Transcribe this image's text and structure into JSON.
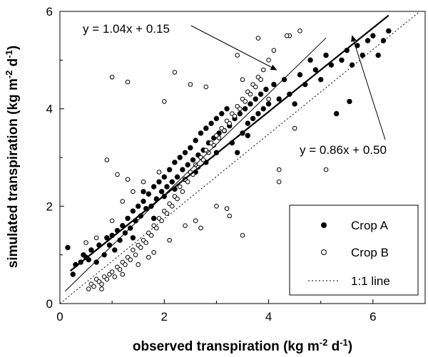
{
  "chart_data": {
    "type": "scatter",
    "xlabel": {
      "main": "observed transpiration (kg m",
      "exp1": "-2",
      "mid": " d",
      "exp2": "-1",
      "end": ")"
    },
    "ylabel": {
      "main": "simulated transpiration (kg m",
      "exp1": "-2",
      "mid": " d",
      "exp2": "-1",
      "end": ")"
    },
    "xlim": [
      0,
      7
    ],
    "ylim": [
      0,
      6
    ],
    "xticks": [
      "0",
      "2",
      "4",
      "6"
    ],
    "xtick_values": [
      0,
      2,
      4,
      6
    ],
    "yticks": [
      "0",
      "2",
      "4",
      "6"
    ],
    "ytick_values": [
      0,
      2,
      4,
      6
    ],
    "legend_placement": "bottom-right",
    "series": [
      {
        "name": "Crop A",
        "marker": "filled-circle",
        "points": [
          [
            0.15,
            1.15
          ],
          [
            0.25,
            0.6
          ],
          [
            0.3,
            0.8
          ],
          [
            0.4,
            0.85
          ],
          [
            0.45,
            1.0
          ],
          [
            0.5,
            0.95
          ],
          [
            0.55,
            0.9
          ],
          [
            0.6,
            1.1
          ],
          [
            0.7,
            0.85
          ],
          [
            0.75,
            1.2
          ],
          [
            0.85,
            1.0
          ],
          [
            0.9,
            1.35
          ],
          [
            0.95,
            1.2
          ],
          [
            1.0,
            1.4
          ],
          [
            1.05,
            1.1
          ],
          [
            1.1,
            1.5
          ],
          [
            1.15,
            1.3
          ],
          [
            1.2,
            1.6
          ],
          [
            1.25,
            1.45
          ],
          [
            1.3,
            1.75
          ],
          [
            1.35,
            1.55
          ],
          [
            1.4,
            1.9
          ],
          [
            1.45,
            1.7
          ],
          [
            1.5,
            2.0
          ],
          [
            1.55,
            1.8
          ],
          [
            1.6,
            2.1
          ],
          [
            1.65,
            1.95
          ],
          [
            1.7,
            2.25
          ],
          [
            1.75,
            2.0
          ],
          [
            1.8,
            2.4
          ],
          [
            1.85,
            2.15
          ],
          [
            1.9,
            2.5
          ],
          [
            1.95,
            2.3
          ],
          [
            2.0,
            2.6
          ],
          [
            2.05,
            2.4
          ],
          [
            2.1,
            2.75
          ],
          [
            2.15,
            2.5
          ],
          [
            2.2,
            2.9
          ],
          [
            2.25,
            2.6
          ],
          [
            2.3,
            3.0
          ],
          [
            2.35,
            2.75
          ],
          [
            2.4,
            3.1
          ],
          [
            2.45,
            2.85
          ],
          [
            2.5,
            3.2
          ],
          [
            2.55,
            2.95
          ],
          [
            2.6,
            3.35
          ],
          [
            2.65,
            3.05
          ],
          [
            2.7,
            3.5
          ],
          [
            2.75,
            3.15
          ],
          [
            2.8,
            3.6
          ],
          [
            2.85,
            3.3
          ],
          [
            2.9,
            3.7
          ],
          [
            2.95,
            3.4
          ],
          [
            3.0,
            3.8
          ],
          [
            3.05,
            3.5
          ],
          [
            3.1,
            3.9
          ],
          [
            3.15,
            3.55
          ],
          [
            3.2,
            4.0
          ],
          [
            3.25,
            3.65
          ],
          [
            3.3,
            3.3
          ],
          [
            3.35,
            3.8
          ],
          [
            3.4,
            3.1
          ],
          [
            3.45,
            3.9
          ],
          [
            3.5,
            3.5
          ],
          [
            3.55,
            4.0
          ],
          [
            3.6,
            3.7
          ],
          [
            3.65,
            4.1
          ],
          [
            3.7,
            3.8
          ],
          [
            3.75,
            4.2
          ],
          [
            3.8,
            3.9
          ],
          [
            3.85,
            4.3
          ],
          [
            3.9,
            4.0
          ],
          [
            3.95,
            4.4
          ],
          [
            4.0,
            4.1
          ],
          [
            4.1,
            4.5
          ],
          [
            4.2,
            4.2
          ],
          [
            4.3,
            4.6
          ],
          [
            4.4,
            4.3
          ],
          [
            4.5,
            4.1
          ],
          [
            4.6,
            4.7
          ],
          [
            4.7,
            4.5
          ],
          [
            4.8,
            5.0
          ],
          [
            4.9,
            4.8
          ],
          [
            5.0,
            4.6
          ],
          [
            5.1,
            5.1
          ],
          [
            5.2,
            4.9
          ],
          [
            5.3,
            3.9
          ],
          [
            5.4,
            5.0
          ],
          [
            5.5,
            5.2
          ],
          [
            5.55,
            4.15
          ],
          [
            5.6,
            4.9
          ],
          [
            5.7,
            5.3
          ],
          [
            5.8,
            5.1
          ],
          [
            5.9,
            5.4
          ],
          [
            6.0,
            5.5
          ],
          [
            6.1,
            5.1
          ],
          [
            6.2,
            5.4
          ],
          [
            6.3,
            5.6
          ],
          [
            1.6,
            2.3
          ],
          [
            2.0,
            2.2
          ],
          [
            2.6,
            2.7
          ],
          [
            2.8,
            2.9
          ],
          [
            3.0,
            3.1
          ],
          [
            2.2,
            2.35
          ],
          [
            1.4,
            1.35
          ],
          [
            1.8,
            1.75
          ],
          [
            2.4,
            2.55
          ],
          [
            3.6,
            3.45
          ]
        ]
      },
      {
        "name": "Crop B",
        "marker": "open-circle",
        "points": [
          [
            0.55,
            0.3
          ],
          [
            0.6,
            0.4
          ],
          [
            0.65,
            0.35
          ],
          [
            0.7,
            0.5
          ],
          [
            0.75,
            0.45
          ],
          [
            0.8,
            0.4
          ],
          [
            0.85,
            0.55
          ],
          [
            0.9,
            0.5
          ],
          [
            0.95,
            0.6
          ],
          [
            1.0,
            0.65
          ],
          [
            1.05,
            0.55
          ],
          [
            1.1,
            0.75
          ],
          [
            1.15,
            0.7
          ],
          [
            1.2,
            0.85
          ],
          [
            1.25,
            0.8
          ],
          [
            1.3,
            0.95
          ],
          [
            1.35,
            0.9
          ],
          [
            1.4,
            1.1
          ],
          [
            1.45,
            1.0
          ],
          [
            1.5,
            1.2
          ],
          [
            1.55,
            1.15
          ],
          [
            1.6,
            1.3
          ],
          [
            1.65,
            1.25
          ],
          [
            1.7,
            1.45
          ],
          [
            1.75,
            1.4
          ],
          [
            1.8,
            1.6
          ],
          [
            1.85,
            1.55
          ],
          [
            1.9,
            1.75
          ],
          [
            1.95,
            1.7
          ],
          [
            2.0,
            1.9
          ],
          [
            2.05,
            1.85
          ],
          [
            2.1,
            2.05
          ],
          [
            2.15,
            2.0
          ],
          [
            2.2,
            2.2
          ],
          [
            2.25,
            2.15
          ],
          [
            2.3,
            2.4
          ],
          [
            2.35,
            2.3
          ],
          [
            2.4,
            2.55
          ],
          [
            2.45,
            2.5
          ],
          [
            2.5,
            2.7
          ],
          [
            2.55,
            2.65
          ],
          [
            2.6,
            2.85
          ],
          [
            2.65,
            2.8
          ],
          [
            2.7,
            3.0
          ],
          [
            2.75,
            2.95
          ],
          [
            2.8,
            3.15
          ],
          [
            2.85,
            3.1
          ],
          [
            2.9,
            3.3
          ],
          [
            2.95,
            3.25
          ],
          [
            3.0,
            3.45
          ],
          [
            3.05,
            3.4
          ],
          [
            3.1,
            3.6
          ],
          [
            3.15,
            3.55
          ],
          [
            3.2,
            3.75
          ],
          [
            3.25,
            3.7
          ],
          [
            3.3,
            3.9
          ],
          [
            3.35,
            3.85
          ],
          [
            3.4,
            4.05
          ],
          [
            3.45,
            4.0
          ],
          [
            3.5,
            4.2
          ],
          [
            3.55,
            4.15
          ],
          [
            3.6,
            4.35
          ],
          [
            3.65,
            4.3
          ],
          [
            3.7,
            4.5
          ],
          [
            3.75,
            4.45
          ],
          [
            3.8,
            4.65
          ],
          [
            3.85,
            4.6
          ],
          [
            3.9,
            4.8
          ],
          [
            4.0,
            5.0
          ],
          [
            4.1,
            5.2
          ],
          [
            4.6,
            5.6
          ],
          [
            3.8,
            5.45
          ],
          [
            4.4,
            5.5
          ],
          [
            1.0,
            4.65
          ],
          [
            1.3,
            4.55
          ],
          [
            2.0,
            4.15
          ],
          [
            2.2,
            4.75
          ],
          [
            2.5,
            4.5
          ],
          [
            2.8,
            4.45
          ],
          [
            3.4,
            5.1
          ],
          [
            3.5,
            4.6
          ],
          [
            4.0,
            4.2
          ],
          [
            4.5,
            3.6
          ],
          [
            4.2,
            2.75
          ],
          [
            5.1,
            2.75
          ],
          [
            3.5,
            1.4
          ],
          [
            3.2,
            1.95
          ],
          [
            3.25,
            1.8
          ],
          [
            3.0,
            2.0
          ],
          [
            4.2,
            2.5
          ],
          [
            0.9,
            2.95
          ],
          [
            1.1,
            2.65
          ],
          [
            1.3,
            2.55
          ],
          [
            0.5,
            1.25
          ],
          [
            0.7,
            1.35
          ],
          [
            1.0,
            1.7
          ],
          [
            1.2,
            2.1
          ],
          [
            1.4,
            2.3
          ],
          [
            1.6,
            2.5
          ],
          [
            1.9,
            2.7
          ],
          [
            2.4,
            1.6
          ],
          [
            2.6,
            1.7
          ],
          [
            2.7,
            1.55
          ],
          [
            2.1,
            1.3
          ],
          [
            1.5,
            0.8
          ],
          [
            1.7,
            0.95
          ],
          [
            1.8,
            1.05
          ],
          [
            1.2,
            0.6
          ],
          [
            0.8,
            0.3
          ],
          [
            4.35,
            5.5
          ]
        ]
      },
      {
        "name": "1:1 line",
        "line": "dotted",
        "from": [
          0,
          0
        ],
        "to": [
          6.9,
          6.9
        ]
      }
    ],
    "regressions": [
      {
        "label": "y = 1.04x + 0.15",
        "slope": 1.04,
        "intercept": 0.15,
        "x_from": 0.1,
        "x_to": 5.1,
        "weight": "thin"
      },
      {
        "label": "y = 0.86x + 0.50",
        "slope": 0.86,
        "intercept": 0.5,
        "x_from": 0.2,
        "x_to": 6.3,
        "weight": "thick"
      }
    ],
    "annotations": [
      {
        "text": "y = 1.04x + 0.15",
        "arrow_to": [
          4.15,
          4.8
        ]
      },
      {
        "text": "y = 0.86x + 0.50",
        "arrow_to": [
          5.6,
          5.5
        ]
      }
    ]
  }
}
